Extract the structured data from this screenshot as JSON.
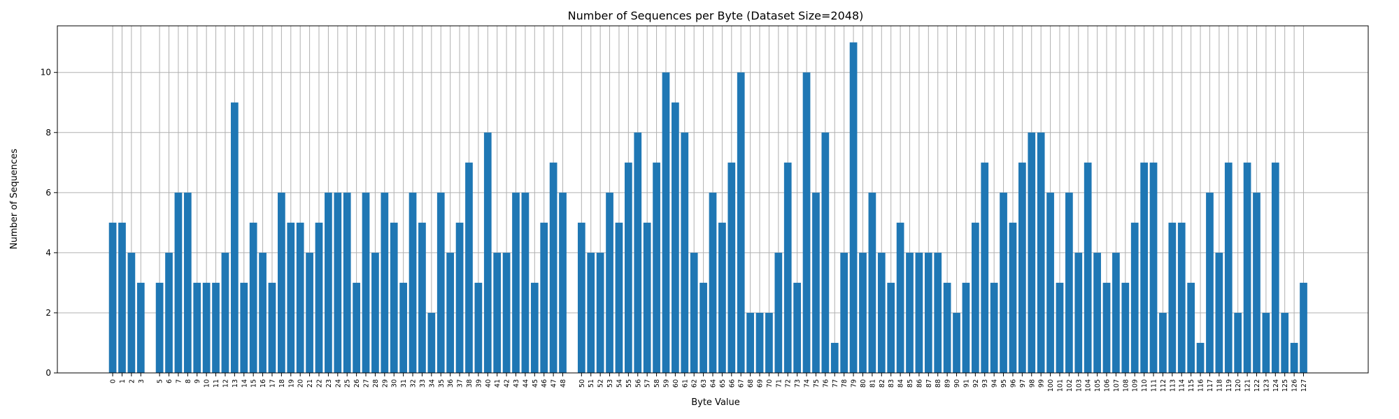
{
  "chart_data": {
    "type": "bar",
    "title": "Number of Sequences per Byte (Dataset Size=2048)",
    "xlabel": "Byte Value",
    "ylabel": "Number of Sequences",
    "xlim": [
      -5.9,
      133.9
    ],
    "ylim": [
      0,
      11.55
    ],
    "yticks": [
      0,
      2,
      4,
      6,
      8,
      10
    ],
    "grid": true,
    "color": "#1f77b4",
    "categories": [
      0,
      1,
      2,
      3,
      5,
      6,
      7,
      8,
      9,
      10,
      11,
      12,
      13,
      14,
      15,
      16,
      17,
      18,
      19,
      20,
      21,
      22,
      23,
      24,
      25,
      26,
      27,
      28,
      29,
      30,
      31,
      32,
      33,
      34,
      35,
      36,
      37,
      38,
      39,
      40,
      41,
      42,
      43,
      44,
      45,
      46,
      47,
      48,
      50,
      51,
      52,
      53,
      54,
      55,
      56,
      57,
      58,
      59,
      60,
      61,
      62,
      63,
      64,
      65,
      66,
      67,
      68,
      69,
      70,
      71,
      72,
      73,
      74,
      75,
      76,
      77,
      78,
      79,
      80,
      81,
      82,
      83,
      84,
      85,
      86,
      87,
      88,
      89,
      90,
      91,
      92,
      93,
      94,
      95,
      96,
      97,
      98,
      99,
      100,
      101,
      102,
      103,
      104,
      105,
      106,
      107,
      108,
      109,
      110,
      111,
      112,
      113,
      114,
      115,
      116,
      117,
      118,
      119,
      120,
      121,
      122,
      123,
      124,
      125,
      126,
      127
    ],
    "values": [
      5,
      5,
      4,
      3,
      3,
      4,
      6,
      6,
      3,
      3,
      3,
      4,
      9,
      3,
      5,
      4,
      3,
      6,
      5,
      5,
      4,
      5,
      6,
      6,
      6,
      3,
      6,
      4,
      6,
      5,
      3,
      6,
      5,
      2,
      6,
      4,
      5,
      7,
      3,
      8,
      4,
      4,
      6,
      6,
      3,
      5,
      7,
      6,
      5,
      4,
      4,
      6,
      5,
      7,
      8,
      5,
      7,
      10,
      9,
      8,
      4,
      3,
      6,
      5,
      7,
      10,
      2,
      2,
      2,
      4,
      7,
      3,
      10,
      6,
      8,
      1,
      4,
      11,
      4,
      6,
      4,
      3,
      5,
      4,
      4,
      4,
      4,
      3,
      2,
      3,
      5,
      7,
      3,
      6,
      5,
      7,
      8,
      8,
      6,
      3,
      6,
      4,
      7,
      4,
      3,
      4,
      3,
      5,
      7,
      7,
      2,
      5,
      5,
      3,
      1,
      6,
      4,
      7,
      2,
      7,
      6,
      2,
      7,
      2,
      1,
      3
    ]
  }
}
